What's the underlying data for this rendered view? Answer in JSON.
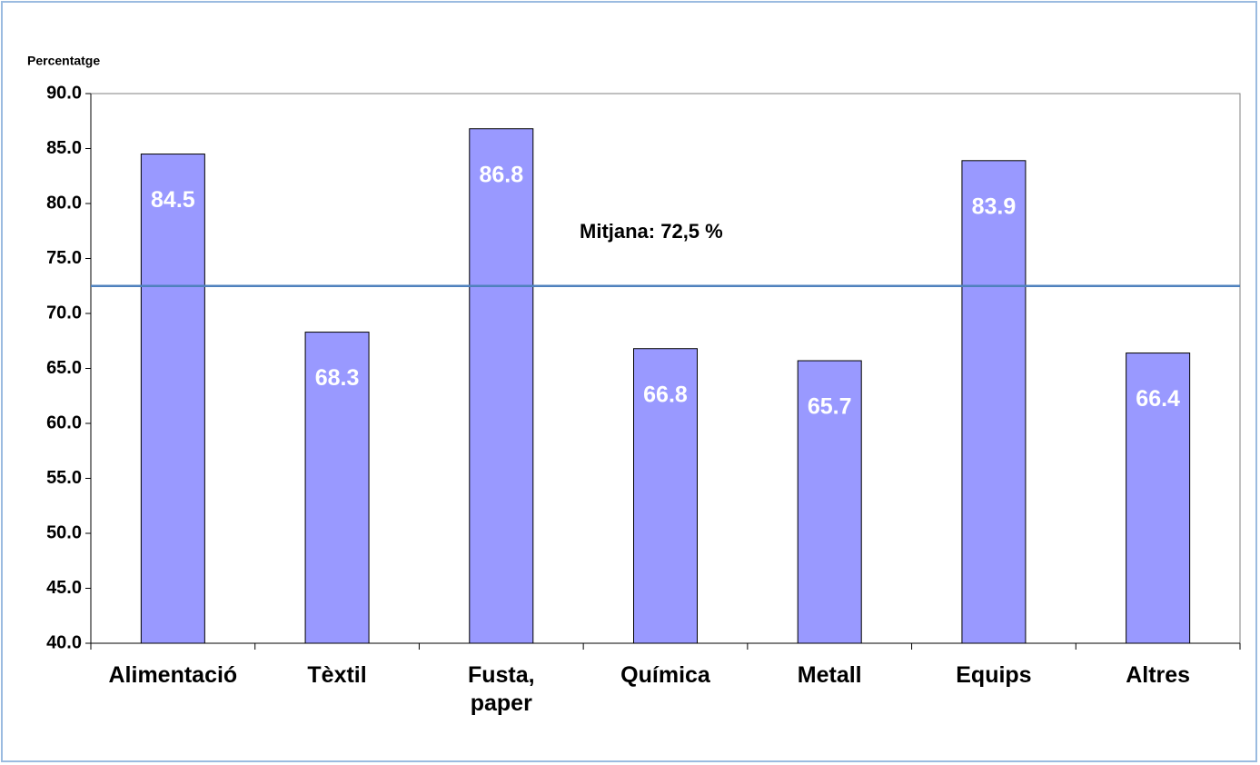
{
  "chart_data": {
    "type": "bar",
    "y_label": "Percentatge",
    "categories": [
      "Alimentació",
      "Tèxtil",
      "Fusta, paper",
      "Química",
      "Metall",
      "Equips",
      "Altres"
    ],
    "values": [
      84.5,
      68.3,
      86.8,
      66.8,
      65.7,
      83.9,
      66.4
    ],
    "color": "#9999ff",
    "ylim": [
      40,
      90
    ],
    "yticks": [
      {
        "value": 40,
        "label": "40.0"
      },
      {
        "value": 45,
        "label": "45.0"
      },
      {
        "value": 50,
        "label": "50.0"
      },
      {
        "value": 55,
        "label": "55.0"
      },
      {
        "value": 60,
        "label": "60.0"
      },
      {
        "value": 65,
        "label": "65.0"
      },
      {
        "value": 70,
        "label": "70.0"
      },
      {
        "value": 75,
        "label": "75.0"
      },
      {
        "value": 80,
        "label": "80.0"
      },
      {
        "value": 85,
        "label": "85.0"
      },
      {
        "value": 90,
        "label": "90.0"
      }
    ],
    "mean_line": {
      "value": 72.5,
      "label": "Mitjana: 72,5 %",
      "color": "#4f81bd"
    },
    "grid": false
  }
}
